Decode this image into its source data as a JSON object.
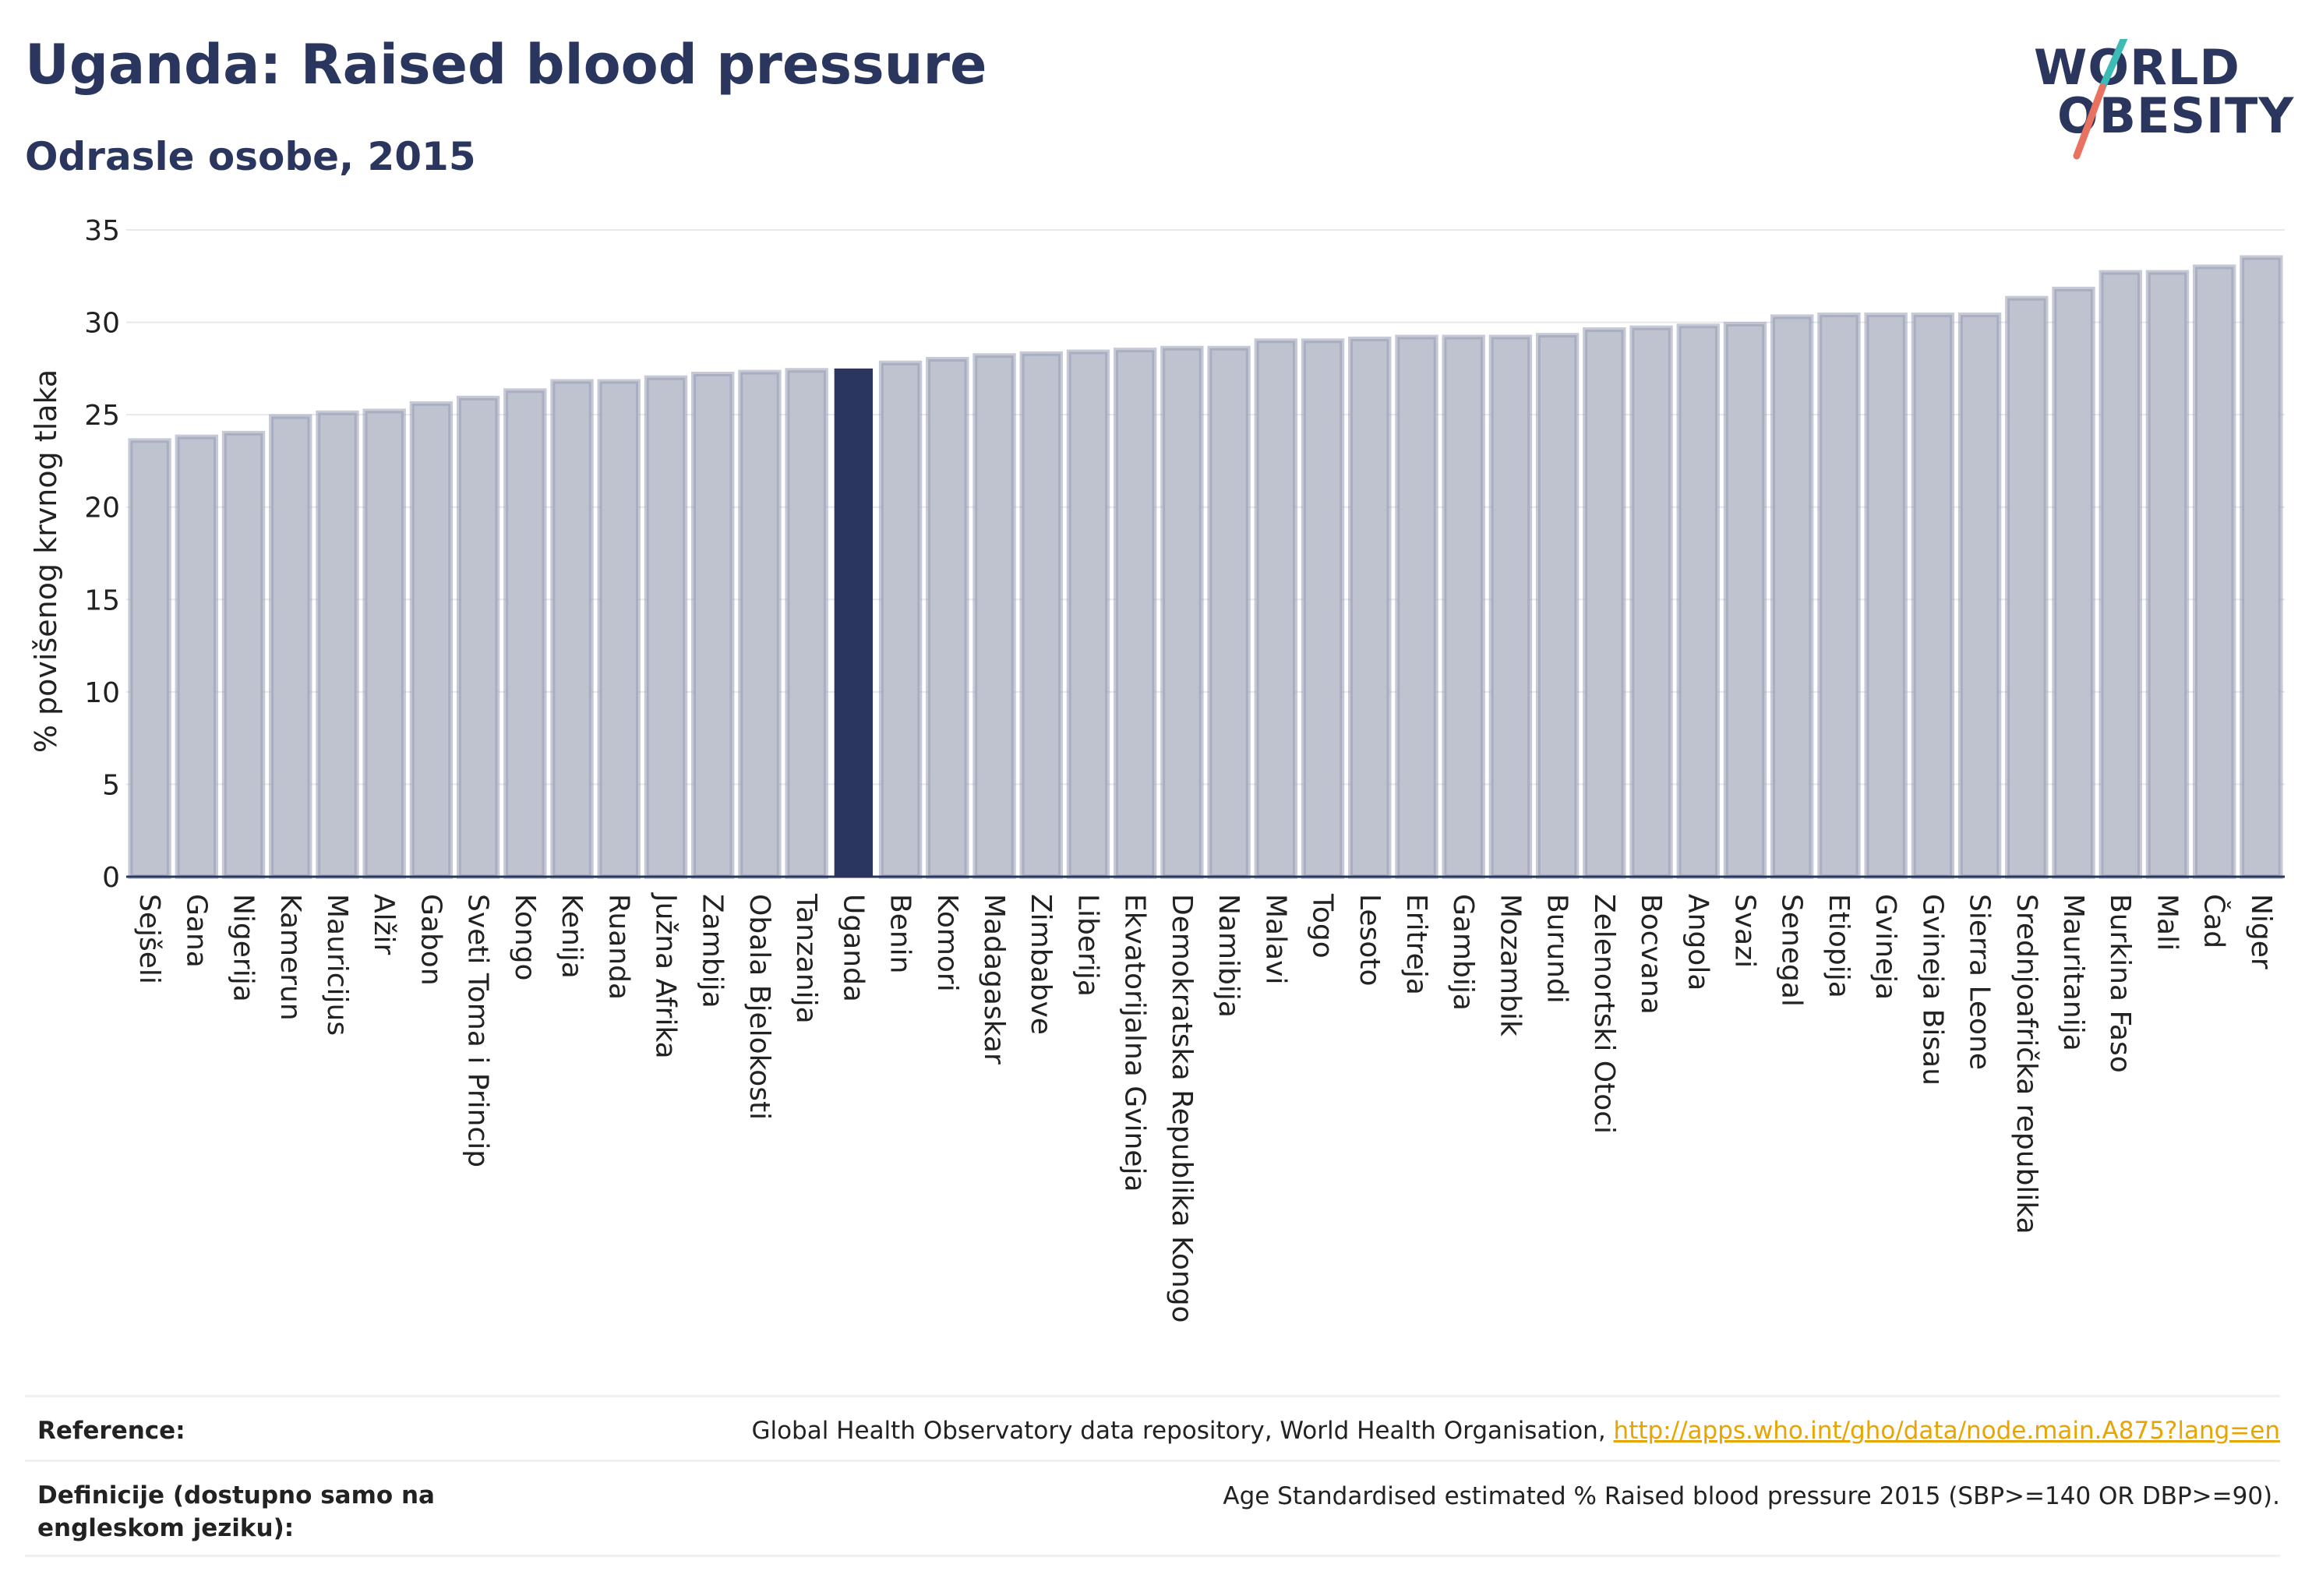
{
  "header": {
    "title": "Uganda: Raised blood pressure",
    "subtitle": "Odrasle osobe, 2015"
  },
  "logo": {
    "line1": "WORLD",
    "line2": "OBESITY"
  },
  "chart_data": {
    "type": "bar",
    "ylabel": "% povišenog krvnog tlaka",
    "ylim": [
      0,
      35
    ],
    "yticks": [
      0,
      5,
      10,
      15,
      20,
      25,
      30,
      35
    ],
    "grid": true,
    "highlight": "Uganda",
    "colors": {
      "bar": "#bfc3d0",
      "bar_border": "#979db5",
      "highlight": "#2b365f"
    },
    "categories": [
      "Sejšeli",
      "Gana",
      "Nigerija",
      "Kamerun",
      "Mauricijus",
      "Alžir",
      "Gabon",
      "Sveti Toma i Princip",
      "Kongo",
      "Kenija",
      "Ruanda",
      "Južna Afrika",
      "Zambija",
      "Obala Bjelokosti",
      "Tanzanija",
      "Uganda",
      "Benin",
      "Komori",
      "Madagaskar",
      "Zimbabve",
      "Liberija",
      "Ekvatorijalna Gvineja",
      "Demokratska Republika Kongo",
      "Namibija",
      "Malavi",
      "Togo",
      "Lesoto",
      "Eritreja",
      "Gambija",
      "Mozambik",
      "Burundi",
      "Zelenortski Otoci",
      "Bocvana",
      "Angola",
      "Svazi",
      "Senegal",
      "Etiopija",
      "Gvineja",
      "Gvineja Bisau",
      "Sierra Leone",
      "Srednjoafrička republika",
      "Mauritanija",
      "Burkina Faso",
      "Mali",
      "Čad",
      "Niger"
    ],
    "values": [
      23.6,
      23.8,
      24.0,
      24.9,
      25.1,
      25.2,
      25.6,
      25.9,
      26.3,
      26.8,
      26.8,
      27.0,
      27.2,
      27.3,
      27.4,
      27.5,
      27.8,
      28.0,
      28.2,
      28.3,
      28.4,
      28.5,
      28.6,
      28.6,
      29.0,
      29.0,
      29.1,
      29.2,
      29.2,
      29.2,
      29.3,
      29.6,
      29.7,
      29.8,
      29.9,
      30.3,
      30.4,
      30.4,
      30.4,
      30.4,
      31.3,
      31.8,
      32.7,
      32.7,
      33.0,
      33.5
    ]
  },
  "footer": {
    "reference_label": "Reference:",
    "reference_text": "Global Health Observatory data repository, World Health Organisation, ",
    "reference_link": "http://apps.who.int/gho/data/node.main.A875?lang=en",
    "definition_label": "Definicije (dostupno samo na engleskom jeziku):",
    "definition_text": "Age Standardised estimated % Raised blood pressure 2015 (SBP>=140 OR DBP>=90)."
  }
}
